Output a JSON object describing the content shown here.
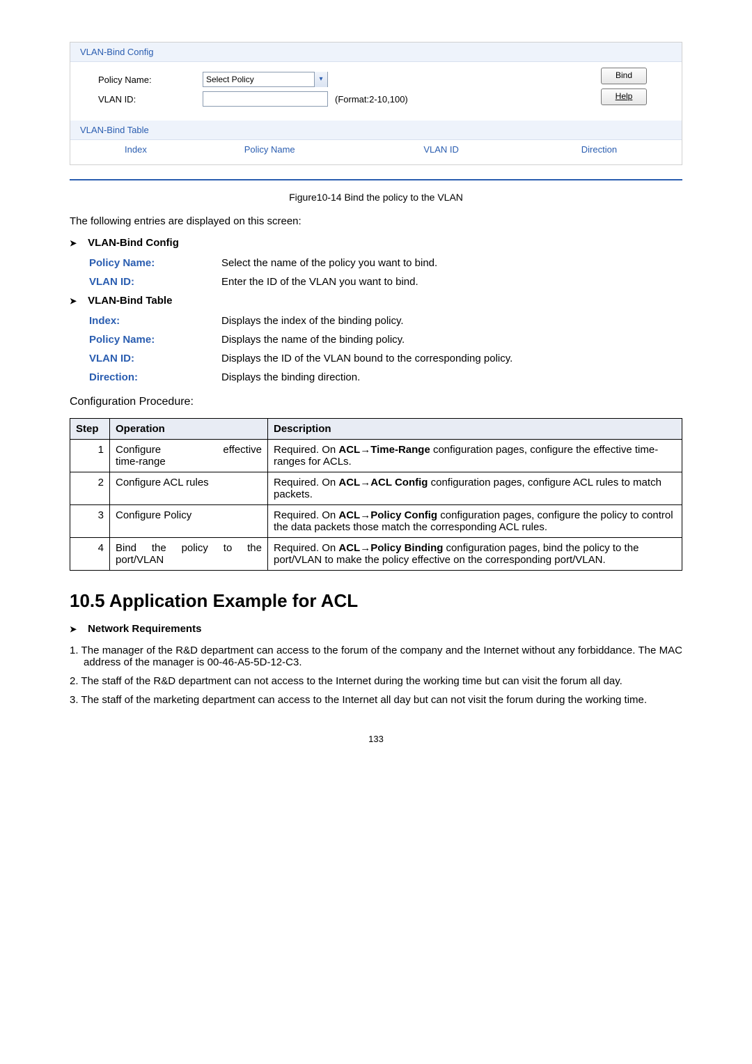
{
  "screenshot": {
    "section1_title": "VLAN-Bind Config",
    "policy_name_label": "Policy Name:",
    "policy_select_text": "Select Policy",
    "vlan_id_label": "VLAN ID:",
    "format_hint": "(Format:2-10,100)",
    "btn_bind": "Bind",
    "btn_help": "Help",
    "section2_title": "VLAN-Bind Table",
    "columns": {
      "index": "Index",
      "policy_name": "Policy Name",
      "vlan_id": "VLAN ID",
      "direction": "Direction"
    },
    "col_widths": {
      "index": 150,
      "policy_name": 240,
      "vlan_id": 260,
      "direction": 200
    }
  },
  "figure_caption": "Figure10-14 Bind the policy to the VLAN",
  "intro": "The following entries are displayed on this screen:",
  "config_heading": "VLAN-Bind Config",
  "config_rows": [
    {
      "term": "Policy Name:",
      "desc": "Select the name of the policy you want to bind."
    },
    {
      "term": "VLAN ID:",
      "desc": "Enter the ID of the VLAN you want to bind."
    }
  ],
  "table_heading": "VLAN-Bind Table",
  "table_rows": [
    {
      "term": "Index:",
      "desc": "Displays the index of the binding policy."
    },
    {
      "term": "Policy Name:",
      "desc": "Displays the name of the binding policy."
    },
    {
      "term": "VLAN ID:",
      "desc": "Displays the ID of the VLAN bound to the corresponding policy."
    },
    {
      "term": "Direction:",
      "desc": "Displays the binding direction."
    }
  ],
  "config_procedure_label": "Configuration Procedure:",
  "proc_table": {
    "headers": {
      "step": "Step",
      "operation": "Operation",
      "description": "Description"
    },
    "rows": [
      {
        "step": "1",
        "op_html": "<span class='op-flex'><span>Configure</span><span>effective</span></span>time-range",
        "desc_pre": "Required. On ",
        "desc_bold": "ACL→Time-Range",
        "desc_post": " configuration pages, configure the effective time-ranges for ACLs."
      },
      {
        "step": "2",
        "op_html": "Configure ACL rules",
        "desc_pre": "Required. On ",
        "desc_bold": "ACL→ACL Config",
        "desc_post": " configuration pages, configure ACL rules to match packets."
      },
      {
        "step": "3",
        "op_html": "Configure Policy",
        "desc_pre": "Required. On ",
        "desc_bold": "ACL→Policy Config",
        "desc_post": " configuration pages, configure the policy to control the data packets those match the corresponding ACL rules."
      },
      {
        "step": "4",
        "op_html": "<span class='op-flex'><span>Bind</span><span>the</span><span>policy</span><span>to</span><span>the</span></span>port/VLAN",
        "desc_pre": "Required. On ",
        "desc_bold": "ACL→Policy Binding",
        "desc_post": " configuration pages, bind the policy to the port/VLAN to make the policy effective on the corresponding port/VLAN."
      }
    ]
  },
  "section_title": "10.5 Application Example for ACL",
  "network_req_heading": "Network Requirements",
  "requirements": [
    "1. The manager of the R&D department can access to the forum of the company and the Internet without any forbiddance. The MAC address of the manager is 00-46-A5-5D-12-C3.",
    "2. The staff of the R&D department can not access to the Internet during the working time but can visit the forum all day.",
    "3. The staff of the marketing department can access to the Internet all day but can not visit the forum during the working time."
  ],
  "page_number": "133"
}
